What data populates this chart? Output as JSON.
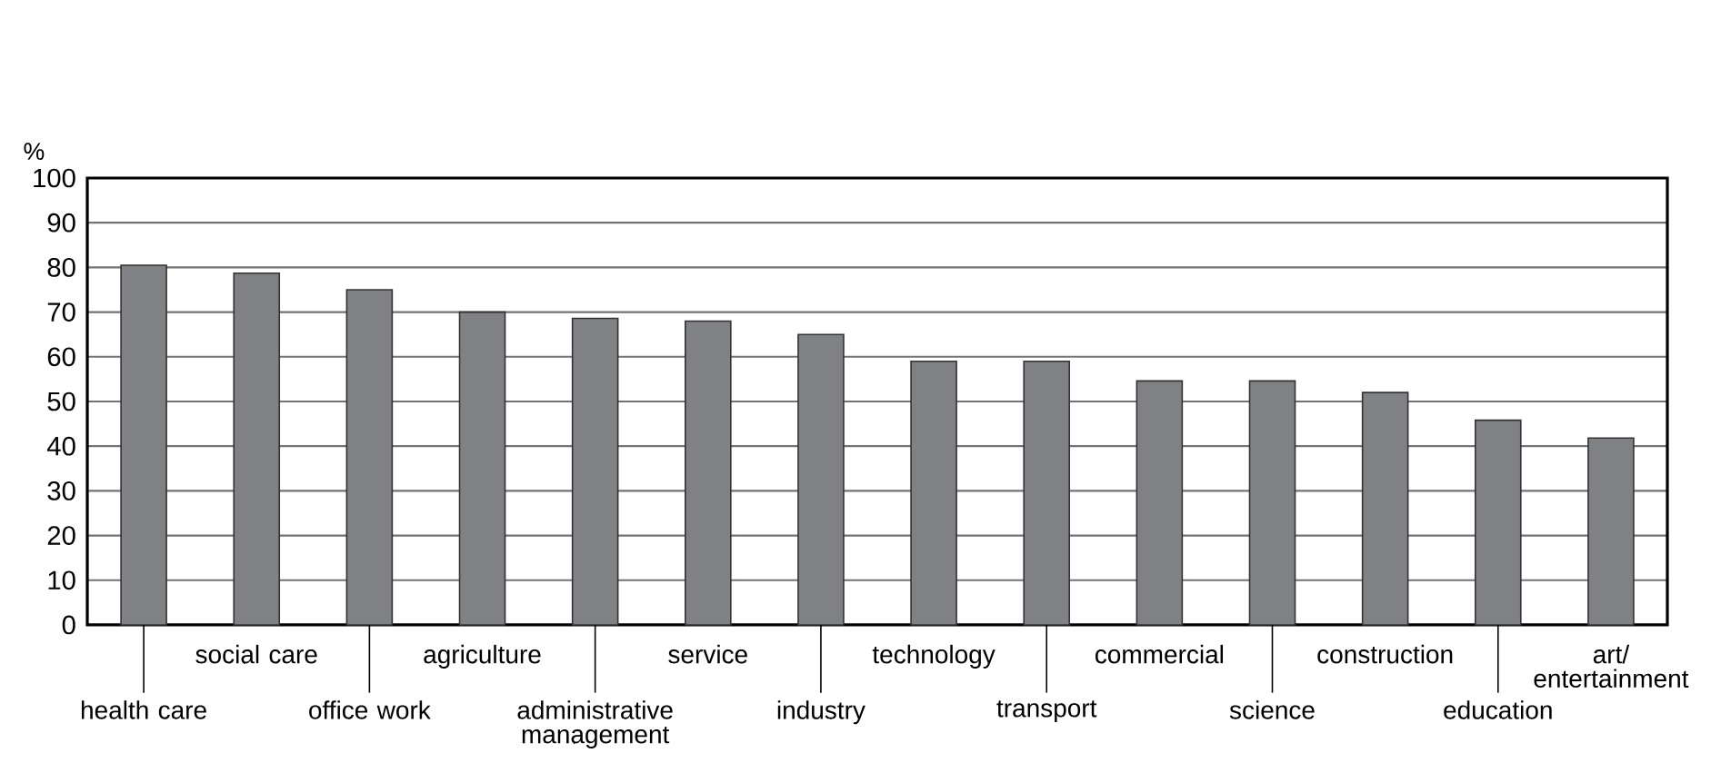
{
  "chart_data": {
    "type": "bar",
    "ylabel": "%",
    "categories": [
      "health care",
      "social care",
      "office work",
      "agriculture",
      "administrative management",
      "service",
      "industry",
      "technology",
      "transport",
      "commercial",
      "science",
      "construction",
      "education",
      "art/ entertainment"
    ],
    "values": [
      80.5,
      78.7,
      75,
      70,
      68.6,
      68,
      65,
      59,
      59,
      54.6,
      54.6,
      52,
      45.8,
      41.8
    ],
    "color": "#808185",
    "ylim": [
      0,
      100
    ],
    "yticks": [
      0,
      10,
      20,
      30,
      40,
      50,
      60,
      70,
      80,
      90,
      100
    ],
    "grid": "y"
  }
}
